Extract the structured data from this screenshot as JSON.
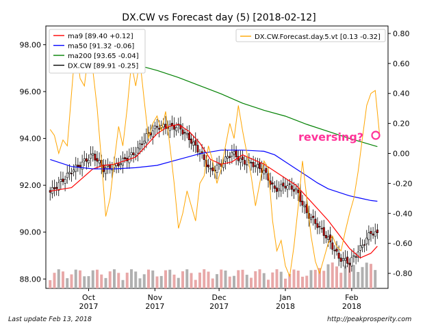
{
  "chart_data": {
    "type": "candlestick",
    "title": "DX.CW vs Forecast day (5)  [2018-02-12]",
    "x_ticks": [
      {
        "month": "Oct",
        "year": "2017",
        "day": 18
      },
      {
        "month": "Nov",
        "year": "2017",
        "day": 49
      },
      {
        "month": "Dec",
        "year": "2017",
        "day": 79
      },
      {
        "month": "Jan",
        "year": "2018",
        "day": 110
      },
      {
        "month": "Feb",
        "year": "2018",
        "day": 141
      }
    ],
    "left_axis": {
      "ylim": [
        87.6,
        98.8
      ],
      "ticks": [
        "98.00",
        "96.00",
        "94.00",
        "92.00",
        "90.00",
        "88.00"
      ]
    },
    "right_axis": {
      "ylim": [
        -0.9,
        0.85
      ],
      "ticks": [
        "0.80",
        "0.60",
        "0.40",
        "0.20",
        "0.00",
        "-0.20",
        "-0.40",
        "-0.60",
        "-0.80"
      ]
    },
    "legend_left": {
      "placement": "top-left",
      "entries": [
        {
          "label": "ma9 [89.40 +0.12]",
          "color": "#ff0000"
        },
        {
          "label": "ma50 [91.32 -0.06]",
          "color": "#0000ff"
        },
        {
          "label": "ma200 [93.65 -0.04]",
          "color": "#008000"
        },
        {
          "label": "DX.CW [89.91 -0.25]",
          "color": "#000000"
        }
      ]
    },
    "legend_right": {
      "placement": "top-right",
      "entries": [
        {
          "label": "DX.CW.Forecast.day.5.vt [0.13 -0.32]",
          "color": "#ffa500"
        }
      ]
    },
    "annotation": {
      "text": "reversing?",
      "color": "#ff3399"
    },
    "series": [
      {
        "name": "DX.CW",
        "type": "candlestick",
        "points": [
          {
            "day": 0,
            "close": 91.7
          },
          {
            "day": 10,
            "close": 92.6
          },
          {
            "day": 20,
            "close": 93.3
          },
          {
            "day": 25,
            "close": 92.7
          },
          {
            "day": 30,
            "close": 92.8
          },
          {
            "day": 40,
            "close": 93.4
          },
          {
            "day": 45,
            "close": 94.1
          },
          {
            "day": 50,
            "close": 94.5
          },
          {
            "day": 55,
            "close": 94.5
          },
          {
            "day": 60,
            "close": 94.5
          },
          {
            "day": 65,
            "close": 94.0
          },
          {
            "day": 70,
            "close": 93.4
          },
          {
            "day": 75,
            "close": 92.6
          },
          {
            "day": 80,
            "close": 92.9
          },
          {
            "day": 85,
            "close": 93.4
          },
          {
            "day": 90,
            "close": 93.0
          },
          {
            "day": 95,
            "close": 92.9
          },
          {
            "day": 100,
            "close": 92.6
          },
          {
            "day": 105,
            "close": 91.8
          },
          {
            "day": 110,
            "close": 92.0
          },
          {
            "day": 115,
            "close": 91.8
          },
          {
            "day": 120,
            "close": 90.8
          },
          {
            "day": 125,
            "close": 90.3
          },
          {
            "day": 130,
            "close": 89.7
          },
          {
            "day": 135,
            "close": 88.9
          },
          {
            "day": 140,
            "close": 88.7
          },
          {
            "day": 145,
            "close": 89.3
          },
          {
            "day": 150,
            "close": 90.0
          },
          {
            "day": 153,
            "close": 89.9
          }
        ]
      },
      {
        "name": "ma9",
        "type": "line",
        "color": "#ff0000",
        "points": [
          {
            "day": 0,
            "close": 91.75
          },
          {
            "day": 10,
            "close": 91.9
          },
          {
            "day": 20,
            "close": 92.7
          },
          {
            "day": 25,
            "close": 92.85
          },
          {
            "day": 30,
            "close": 92.9
          },
          {
            "day": 40,
            "close": 93.2
          },
          {
            "day": 45,
            "close": 93.7
          },
          {
            "day": 50,
            "close": 94.2
          },
          {
            "day": 55,
            "close": 94.5
          },
          {
            "day": 60,
            "close": 94.6
          },
          {
            "day": 65,
            "close": 94.3
          },
          {
            "day": 70,
            "close": 93.8
          },
          {
            "day": 75,
            "close": 93.1
          },
          {
            "day": 80,
            "close": 92.9
          },
          {
            "day": 85,
            "close": 93.0
          },
          {
            "day": 90,
            "close": 93.3
          },
          {
            "day": 95,
            "close": 93.1
          },
          {
            "day": 100,
            "close": 92.9
          },
          {
            "day": 105,
            "close": 92.6
          },
          {
            "day": 110,
            "close": 92.3
          },
          {
            "day": 115,
            "close": 92.0
          },
          {
            "day": 120,
            "close": 91.5
          },
          {
            "day": 125,
            "close": 91.0
          },
          {
            "day": 130,
            "close": 90.5
          },
          {
            "day": 135,
            "close": 89.9
          },
          {
            "day": 140,
            "close": 89.3
          },
          {
            "day": 145,
            "close": 88.9
          },
          {
            "day": 150,
            "close": 89.1
          },
          {
            "day": 153,
            "close": 89.4
          }
        ]
      },
      {
        "name": "ma50",
        "type": "line",
        "color": "#0000ff",
        "points": [
          {
            "day": 0,
            "close": 93.1
          },
          {
            "day": 10,
            "close": 92.8
          },
          {
            "day": 20,
            "close": 92.7
          },
          {
            "day": 30,
            "close": 92.7
          },
          {
            "day": 40,
            "close": 92.75
          },
          {
            "day": 50,
            "close": 92.85
          },
          {
            "day": 60,
            "close": 93.1
          },
          {
            "day": 70,
            "close": 93.35
          },
          {
            "day": 80,
            "close": 93.5
          },
          {
            "day": 90,
            "close": 93.5
          },
          {
            "day": 100,
            "close": 93.45
          },
          {
            "day": 105,
            "close": 93.3
          },
          {
            "day": 110,
            "close": 93.0
          },
          {
            "day": 115,
            "close": 92.7
          },
          {
            "day": 120,
            "close": 92.4
          },
          {
            "day": 125,
            "close": 92.1
          },
          {
            "day": 130,
            "close": 91.85
          },
          {
            "day": 135,
            "close": 91.7
          },
          {
            "day": 140,
            "close": 91.55
          },
          {
            "day": 145,
            "close": 91.45
          },
          {
            "day": 150,
            "close": 91.35
          },
          {
            "day": 153,
            "close": 91.32
          }
        ]
      },
      {
        "name": "ma200",
        "type": "line",
        "color": "#008000",
        "points": [
          {
            "day": 38,
            "close": 97.2
          },
          {
            "day": 50,
            "close": 96.9
          },
          {
            "day": 60,
            "close": 96.6
          },
          {
            "day": 70,
            "close": 96.25
          },
          {
            "day": 80,
            "close": 95.9
          },
          {
            "day": 90,
            "close": 95.5
          },
          {
            "day": 100,
            "close": 95.2
          },
          {
            "day": 110,
            "close": 94.95
          },
          {
            "day": 120,
            "close": 94.6
          },
          {
            "day": 130,
            "close": 94.3
          },
          {
            "day": 140,
            "close": 94.0
          },
          {
            "day": 153,
            "close": 93.65
          }
        ]
      },
      {
        "name": "DX.CW.Forecast.day.5.vt",
        "type": "line",
        "axis": "right",
        "color": "#ffa500",
        "points": [
          {
            "day": 0,
            "close": 0.16
          },
          {
            "day": 2,
            "close": 0.12
          },
          {
            "day": 4,
            "close": 0.0
          },
          {
            "day": 6,
            "close": 0.09
          },
          {
            "day": 8,
            "close": 0.05
          },
          {
            "day": 10,
            "close": 0.4
          },
          {
            "day": 12,
            "close": 0.75
          },
          {
            "day": 14,
            "close": 0.5
          },
          {
            "day": 16,
            "close": 0.45
          },
          {
            "day": 18,
            "close": 0.68
          },
          {
            "day": 20,
            "close": 0.55
          },
          {
            "day": 22,
            "close": 0.3
          },
          {
            "day": 24,
            "close": -0.05
          },
          {
            "day": 26,
            "close": -0.42
          },
          {
            "day": 28,
            "close": -0.3
          },
          {
            "day": 30,
            "close": -0.05
          },
          {
            "day": 32,
            "close": 0.18
          },
          {
            "day": 34,
            "close": 0.05
          },
          {
            "day": 36,
            "close": 0.3
          },
          {
            "day": 38,
            "close": 0.6
          },
          {
            "day": 40,
            "close": 0.45
          },
          {
            "day": 42,
            "close": 0.62
          },
          {
            "day": 44,
            "close": 0.35
          },
          {
            "day": 46,
            "close": 0.1
          },
          {
            "day": 48,
            "close": 0.2
          },
          {
            "day": 50,
            "close": 0.25
          },
          {
            "day": 52,
            "close": 0.15
          },
          {
            "day": 54,
            "close": 0.28
          },
          {
            "day": 56,
            "close": 0.05
          },
          {
            "day": 58,
            "close": -0.2
          },
          {
            "day": 60,
            "close": -0.5
          },
          {
            "day": 62,
            "close": -0.4
          },
          {
            "day": 64,
            "close": -0.25
          },
          {
            "day": 66,
            "close": -0.35
          },
          {
            "day": 68,
            "close": -0.45
          },
          {
            "day": 70,
            "close": -0.2
          },
          {
            "day": 72,
            "close": -0.15
          },
          {
            "day": 74,
            "close": 0.05
          },
          {
            "day": 76,
            "close": -0.05
          },
          {
            "day": 78,
            "close": -0.2
          },
          {
            "day": 80,
            "close": -0.1
          },
          {
            "day": 82,
            "close": 0.05
          },
          {
            "day": 84,
            "close": 0.2
          },
          {
            "day": 86,
            "close": 0.1
          },
          {
            "day": 88,
            "close": 0.32
          },
          {
            "day": 90,
            "close": 0.15
          },
          {
            "day": 92,
            "close": 0.0
          },
          {
            "day": 94,
            "close": -0.15
          },
          {
            "day": 96,
            "close": -0.35
          },
          {
            "day": 98,
            "close": -0.2
          },
          {
            "day": 100,
            "close": -0.05
          },
          {
            "day": 102,
            "close": -0.1
          },
          {
            "day": 104,
            "close": -0.45
          },
          {
            "day": 106,
            "close": -0.65
          },
          {
            "day": 108,
            "close": -0.58
          },
          {
            "day": 110,
            "close": -0.75
          },
          {
            "day": 112,
            "close": -0.82
          },
          {
            "day": 114,
            "close": -0.62
          },
          {
            "day": 116,
            "close": -0.35
          },
          {
            "day": 118,
            "close": -0.05
          },
          {
            "day": 120,
            "close": -0.3
          },
          {
            "day": 122,
            "close": -0.55
          },
          {
            "day": 124,
            "close": -0.72
          },
          {
            "day": 126,
            "close": -0.8
          },
          {
            "day": 128,
            "close": -0.7
          },
          {
            "day": 130,
            "close": -0.6
          },
          {
            "day": 132,
            "close": -0.55
          },
          {
            "day": 134,
            "close": -0.62
          },
          {
            "day": 136,
            "close": -0.65
          },
          {
            "day": 138,
            "close": -0.52
          },
          {
            "day": 140,
            "close": -0.4
          },
          {
            "day": 142,
            "close": -0.3
          },
          {
            "day": 144,
            "close": -0.12
          },
          {
            "day": 146,
            "close": 0.1
          },
          {
            "day": 148,
            "close": 0.32
          },
          {
            "day": 150,
            "close": 0.4
          },
          {
            "day": 152,
            "close": 0.42
          },
          {
            "day": 154,
            "close": 0.13
          }
        ]
      }
    ]
  },
  "footer": {
    "left": "Last update Feb 13, 2018",
    "right": "http://peakprosperity.com"
  }
}
